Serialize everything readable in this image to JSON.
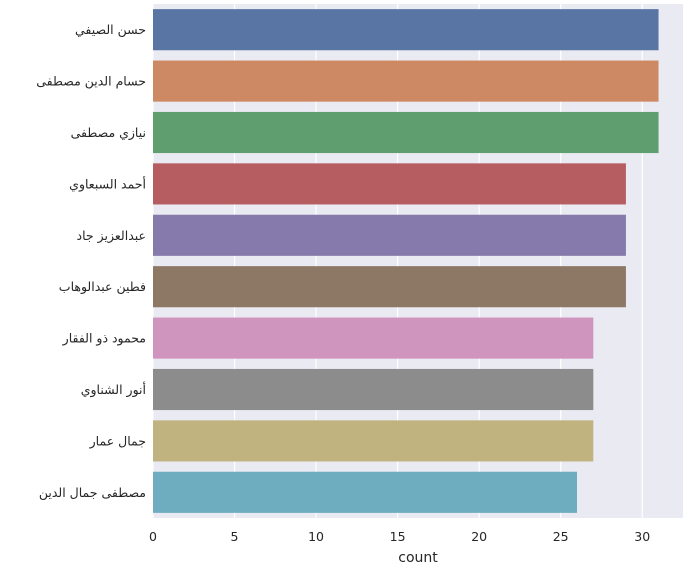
{
  "chart_data": {
    "type": "bar",
    "orientation": "horizontal",
    "categories": [
      "حسن الصيفي",
      "حسام الدين مصطفى",
      "نيازي مصطفى",
      "أحمد السبعاوي",
      "عبدالعزيز جاد",
      "فطين عبدالوهاب",
      "محمود ذو الفقار",
      "أنور الشناوي",
      "جمال عمار",
      "مصطفى جمال الدين"
    ],
    "values": [
      31,
      31,
      31,
      29,
      29,
      29,
      27,
      27,
      27,
      26
    ],
    "colors": [
      "#5875a4",
      "#cc8963",
      "#5f9e6e",
      "#b55d60",
      "#857aab",
      "#8d7866",
      "#d095bf",
      "#8c8c8c",
      "#c1b37f",
      "#6eacc0"
    ],
    "xlabel": "count",
    "ylabel": "",
    "title": "",
    "xlim": [
      0,
      32.5
    ],
    "xticks": [
      0,
      5,
      10,
      15,
      20,
      25,
      30
    ],
    "grid": true,
    "background": "#eaeaf2"
  }
}
